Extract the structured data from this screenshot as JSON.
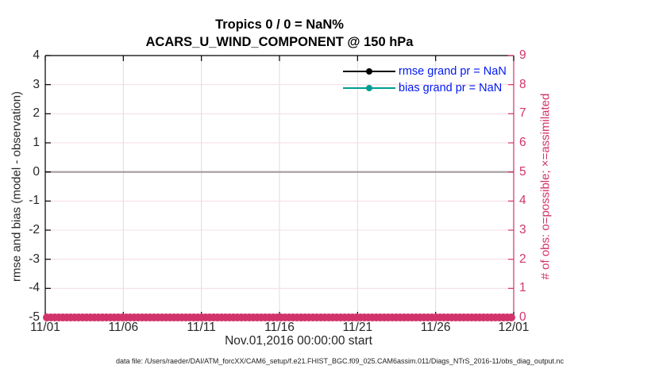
{
  "figure": {
    "footer": "data file: /Users/raeder/DAI/ATM_forcXX/CAM6_setup/f.e21.FHIST_BGC.f09_025.CAM6assim.011/Diags_NTrS_2016-11/obs_diag_output.nc"
  },
  "chart_data": {
    "type": "line",
    "title": "Tropics 0 / 0 = NaN%",
    "subtitle": "ACARS_U_WIND_COMPONENT @ 150 hPa",
    "xlabel": "Nov.01,2016 00:00:00 start",
    "ylabel_left": "rmse and bias (model - observation)",
    "ylabel_right": "# of obs: o=possible; ×=assimilated",
    "x_tick_labels": [
      "11/01",
      "11/06",
      "11/11",
      "11/16",
      "11/21",
      "11/26",
      "12/01"
    ],
    "x_range_days": 30,
    "ylim_left": [
      -5,
      4
    ],
    "yticks_left": [
      4,
      3,
      2,
      1,
      0,
      -1,
      -2,
      -3,
      -4,
      -5
    ],
    "ylim_right": [
      0,
      9
    ],
    "yticks_right": [
      9,
      8,
      7,
      6,
      5,
      4,
      3,
      2,
      1,
      0
    ],
    "grid": {
      "vertical_gray": true,
      "horizontal_pink": true
    },
    "zero_line_left_axis_value": 0,
    "series": [
      {
        "name": "rmse grand pr = NaN",
        "color": "#000000",
        "marker": "dot",
        "values": [],
        "note": "all values NaN, no curve drawn"
      },
      {
        "name": "bias grand pr = NaN",
        "color": "#009e94",
        "marker": "dot",
        "values": [],
        "note": "all values NaN, no curve drawn"
      }
    ],
    "obs_count_series": [
      {
        "name": "possible",
        "marker": "o",
        "constant_value_right_axis": 0
      },
      {
        "name": "assimilated",
        "marker": "x",
        "constant_value_right_axis": 0
      }
    ],
    "legend_position": "top-right-inside"
  },
  "colors": {
    "accent_pink": "#d2336b",
    "grid_pink": "#f6dce7",
    "grid_gray": "#dcdcdc",
    "zero_line": "#a49aa0",
    "legend_text_blue": "#0019f0",
    "tick_label_dark": "#262626",
    "frame_black": "#000000"
  }
}
